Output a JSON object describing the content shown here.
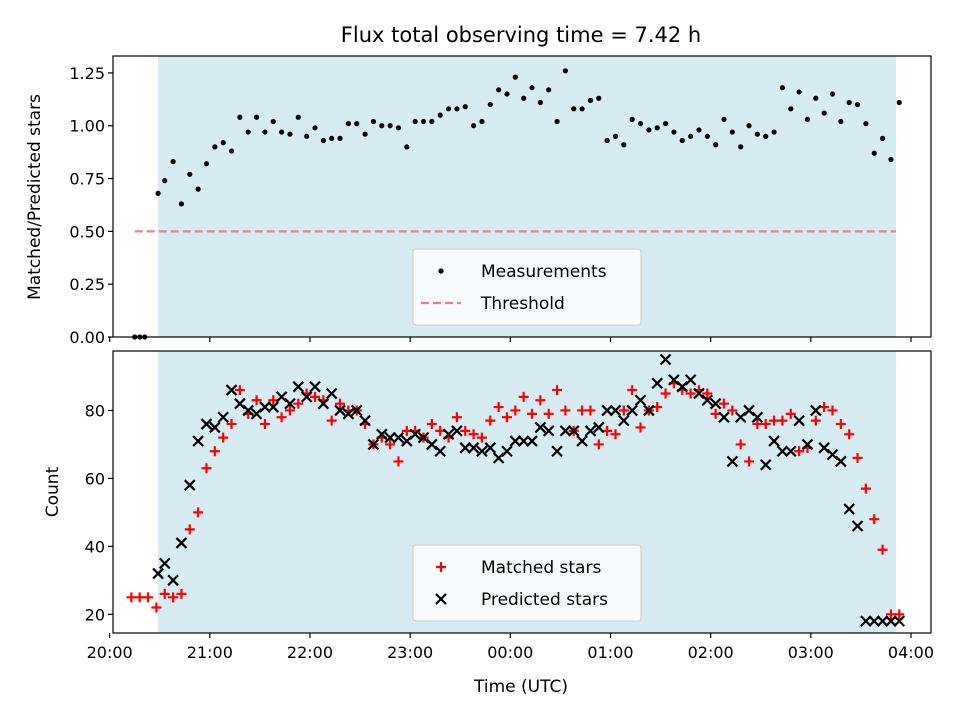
{
  "chart_data": [
    {
      "type": "scatter",
      "title": "Flux total observing time = 7.42 h",
      "xlabel": "",
      "ylabel": "Matched/Predicted stars",
      "xlim": [
        "20:02",
        "04:12"
      ],
      "ylim": [
        0,
        1.33
      ],
      "yticks": [
        0.0,
        0.25,
        0.5,
        0.75,
        1.0,
        1.25
      ],
      "ytick_labels": [
        "0.00",
        "0.25",
        "0.50",
        "0.75",
        "1.00",
        "1.25"
      ],
      "shaded_region": {
        "x_start": "20:29",
        "x_end": "03:51",
        "color": "#add8e6"
      },
      "threshold": {
        "name": "Threshold",
        "value": 0.5,
        "x_start": "20:15",
        "x_end": "03:51",
        "color": "#f08080"
      },
      "series": [
        {
          "name": "Measurements",
          "marker": "dot",
          "color": "#000000",
          "x": [
            "20:15",
            "20:18",
            "20:21",
            "20:29",
            "20:33",
            "20:38",
            "20:43",
            "20:48",
            "20:53",
            "20:58",
            "21:03",
            "21:08",
            "21:13",
            "21:18",
            "21:23",
            "21:28",
            "21:33",
            "21:38",
            "21:43",
            "21:48",
            "21:53",
            "21:58",
            "22:03",
            "22:08",
            "22:13",
            "22:18",
            "22:23",
            "22:28",
            "22:33",
            "22:38",
            "22:43",
            "22:48",
            "22:53",
            "22:58",
            "23:03",
            "23:08",
            "23:13",
            "23:18",
            "23:23",
            "23:28",
            "23:33",
            "23:38",
            "23:43",
            "23:48",
            "23:53",
            "23:58",
            "00:03",
            "00:08",
            "00:13",
            "00:18",
            "00:23",
            "00:28",
            "00:33",
            "00:38",
            "00:43",
            "00:48",
            "00:53",
            "00:58",
            "01:03",
            "01:08",
            "01:13",
            "01:18",
            "01:23",
            "01:28",
            "01:33",
            "01:38",
            "01:43",
            "01:48",
            "01:53",
            "01:58",
            "02:03",
            "02:08",
            "02:13",
            "02:18",
            "02:23",
            "02:28",
            "02:33",
            "02:38",
            "02:43",
            "02:48",
            "02:53",
            "02:58",
            "03:03",
            "03:08",
            "03:13",
            "03:18",
            "03:23",
            "03:28",
            "03:33",
            "03:38",
            "03:43",
            "03:48",
            "03:53"
          ],
          "y": [
            0,
            0,
            0,
            0.68,
            0.74,
            0.83,
            0.63,
            0.77,
            0.7,
            0.82,
            0.9,
            0.92,
            0.88,
            1.04,
            0.97,
            1.04,
            0.97,
            1.02,
            0.97,
            0.96,
            1.04,
            0.95,
            0.99,
            0.93,
            0.94,
            0.94,
            1.01,
            1.01,
            0.96,
            1.02,
            1.0,
            1.0,
            0.99,
            0.9,
            1.02,
            1.02,
            1.02,
            1.05,
            1.08,
            1.08,
            1.09,
            1.0,
            1.02,
            1.1,
            1.17,
            1.15,
            1.23,
            1.13,
            1.18,
            1.11,
            1.17,
            1.02,
            1.26,
            1.08,
            1.08,
            1.12,
            1.13,
            0.93,
            0.95,
            0.91,
            1.03,
            1.01,
            0.98,
            0.99,
            1.01,
            0.97,
            0.93,
            0.95,
            0.98,
            0.95,
            0.91,
            1.03,
            0.97,
            0.9,
            1.0,
            0.96,
            0.95,
            0.97,
            1.18,
            1.08,
            1.16,
            1.03,
            1.13,
            1.06,
            1.15,
            1.02,
            1.11,
            1.1,
            1.01,
            0.87,
            0.94,
            0.84,
            1.11
          ]
        }
      ],
      "legend": {
        "placement": "lower-center",
        "entries": [
          "Measurements",
          "Threshold"
        ]
      }
    },
    {
      "type": "scatter",
      "title": "",
      "xlabel": "Time (UTC)",
      "ylabel": "Count",
      "xlim": [
        "20:02",
        "04:12"
      ],
      "ylim": [
        14.5,
        97.5
      ],
      "yticks": [
        20,
        40,
        60,
        80
      ],
      "ytick_labels": [
        "20",
        "40",
        "60",
        "80"
      ],
      "xticks": [
        "20:00",
        "21:00",
        "22:00",
        "23:00",
        "00:00",
        "01:00",
        "02:00",
        "03:00",
        "04:00"
      ],
      "xtick_labels": [
        "20:00",
        "21:00",
        "22:00",
        "23:00",
        "00:00",
        "01:00",
        "02:00",
        "03:00",
        "04:00"
      ],
      "shaded_region": {
        "x_start": "20:29",
        "x_end": "03:51",
        "color": "#add8e6"
      },
      "series": [
        {
          "name": "Matched stars",
          "marker": "plus",
          "color": "#ff0000",
          "x": [
            "20:13",
            "20:18",
            "20:23",
            "20:28",
            "20:33",
            "20:38",
            "20:43",
            "20:48",
            "20:53",
            "20:58",
            "21:03",
            "21:08",
            "21:13",
            "21:18",
            "21:23",
            "21:28",
            "21:33",
            "21:38",
            "21:43",
            "21:48",
            "21:53",
            "21:58",
            "22:03",
            "22:08",
            "22:13",
            "22:18",
            "22:23",
            "22:28",
            "22:33",
            "22:38",
            "22:43",
            "22:48",
            "22:53",
            "22:58",
            "23:03",
            "23:08",
            "23:13",
            "23:18",
            "23:23",
            "23:28",
            "23:33",
            "23:38",
            "23:43",
            "23:48",
            "23:53",
            "23:58",
            "00:03",
            "00:08",
            "00:13",
            "00:18",
            "00:23",
            "00:28",
            "00:33",
            "00:38",
            "00:43",
            "00:48",
            "00:53",
            "00:58",
            "01:03",
            "01:08",
            "01:13",
            "01:18",
            "01:23",
            "01:28",
            "01:33",
            "01:38",
            "01:43",
            "01:48",
            "01:53",
            "01:58",
            "02:03",
            "02:08",
            "02:13",
            "02:18",
            "02:23",
            "02:28",
            "02:33",
            "02:38",
            "02:43",
            "02:48",
            "02:53",
            "02:58",
            "03:03",
            "03:08",
            "03:13",
            "03:18",
            "03:23",
            "03:28",
            "03:33",
            "03:38",
            "03:43",
            "03:48",
            "03:53"
          ],
          "y": [
            25,
            25,
            25,
            22,
            26,
            25,
            26,
            45,
            50,
            63,
            68,
            72,
            76,
            86,
            79,
            83,
            76,
            83,
            78,
            80,
            82,
            85,
            84,
            83,
            77,
            82,
            80,
            80,
            76,
            70,
            72,
            70,
            65,
            74,
            74,
            72,
            76,
            74,
            72,
            78,
            74,
            73,
            72,
            77,
            81,
            78,
            80,
            84,
            79,
            83,
            79,
            86,
            80,
            74,
            80,
            80,
            70,
            74,
            73,
            80,
            86,
            75,
            80,
            81,
            85,
            88,
            86,
            85,
            86,
            85,
            79,
            82,
            80,
            70,
            65,
            76,
            76,
            77,
            77,
            79,
            68,
            69,
            77,
            81,
            80,
            76,
            73,
            66,
            57,
            48,
            39,
            20,
            20
          ]
        },
        {
          "name": "Predicted stars",
          "marker": "x",
          "color": "#000000",
          "x": [
            "20:29",
            "20:33",
            "20:38",
            "20:43",
            "20:48",
            "20:53",
            "20:58",
            "21:03",
            "21:08",
            "21:13",
            "21:18",
            "21:23",
            "21:28",
            "21:33",
            "21:38",
            "21:43",
            "21:48",
            "21:53",
            "21:58",
            "22:03",
            "22:08",
            "22:13",
            "22:18",
            "22:23",
            "22:28",
            "22:33",
            "22:38",
            "22:43",
            "22:48",
            "22:53",
            "22:58",
            "23:03",
            "23:08",
            "23:13",
            "23:18",
            "23:23",
            "23:28",
            "23:33",
            "23:38",
            "23:43",
            "23:48",
            "23:53",
            "23:58",
            "00:03",
            "00:08",
            "00:13",
            "00:18",
            "00:23",
            "00:28",
            "00:33",
            "00:38",
            "00:43",
            "00:48",
            "00:53",
            "00:58",
            "01:03",
            "01:08",
            "01:13",
            "01:18",
            "01:23",
            "01:28",
            "01:33",
            "01:38",
            "01:43",
            "01:48",
            "01:53",
            "01:58",
            "02:03",
            "02:08",
            "02:13",
            "02:18",
            "02:23",
            "02:28",
            "02:33",
            "02:38",
            "02:43",
            "02:48",
            "02:53",
            "02:58",
            "03:03",
            "03:08",
            "03:13",
            "03:18",
            "03:23",
            "03:28",
            "03:33",
            "03:38",
            "03:43",
            "03:48",
            "03:53"
          ],
          "y": [
            32,
            35,
            30,
            41,
            58,
            71,
            76,
            75,
            78,
            86,
            82,
            80,
            79,
            81,
            81,
            84,
            82,
            87,
            84,
            87,
            82,
            85,
            80,
            79,
            80,
            77,
            70,
            73,
            72,
            72,
            71,
            73,
            72,
            70,
            68,
            73,
            74,
            69,
            69,
            68,
            69,
            66,
            68,
            71,
            71,
            71,
            75,
            74,
            68,
            74,
            74,
            71,
            74,
            75,
            80,
            80,
            77,
            80,
            83,
            80,
            88,
            95,
            89,
            87,
            89,
            85,
            83,
            82,
            78,
            65,
            78,
            80,
            78,
            64,
            71,
            68,
            68,
            77,
            70,
            80,
            69,
            67,
            65,
            51,
            46,
            18,
            18,
            18,
            18,
            18
          ]
        }
      ],
      "legend": {
        "placement": "lower-center",
        "entries": [
          "Matched stars",
          "Predicted stars"
        ]
      }
    }
  ]
}
